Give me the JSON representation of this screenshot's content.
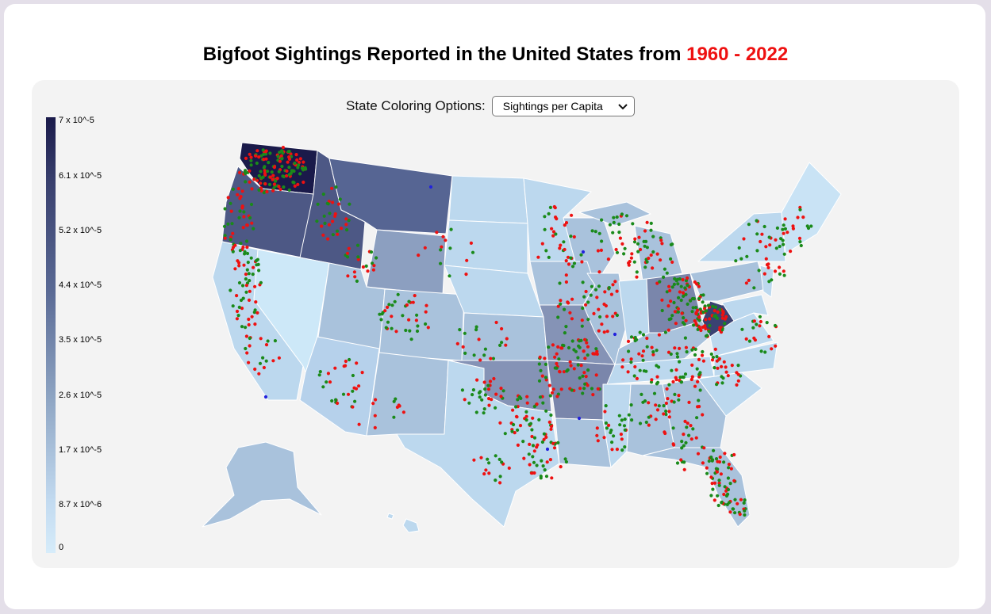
{
  "title": {
    "prefix": "Bigfoot Sightings Reported in the United States from ",
    "years": "1960 - 2022"
  },
  "controls": {
    "label": "State Coloring Options:",
    "selected": "Sightings per Capita"
  },
  "legend": {
    "ticks": [
      "7 x 10^-5",
      "6.1 x 10^-5",
      "5.2 x 10^-5",
      "4.4 x 10^-5",
      "3.5 x 10^-5",
      "2.6 x 10^-5",
      "1.7 x 10^-5",
      "8.7 x 10^-6",
      "0"
    ]
  },
  "colors": {
    "max": "#1a1a4a",
    "min": "#d6ecfa",
    "dot_red": "#ee1111",
    "dot_green": "#1a8a1a",
    "dot_blue": "#2222dd",
    "accent": "#ee1111"
  }
}
